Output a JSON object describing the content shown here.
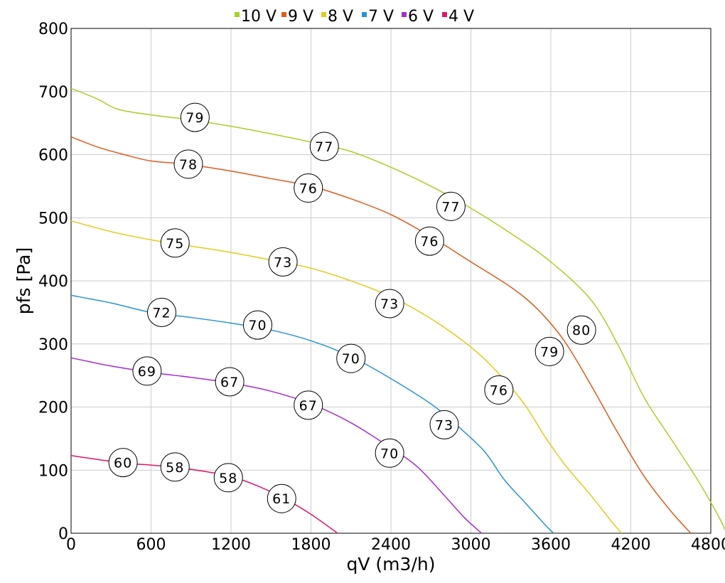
{
  "chart_data": {
    "type": "line",
    "xlabel": "qV (m3/h)",
    "ylabel": "pfs [Pa]",
    "xlim": [
      0,
      4800
    ],
    "ylim": [
      0,
      800
    ],
    "x_ticks": [
      0,
      600,
      1200,
      1800,
      2400,
      3000,
      3600,
      4200,
      4800
    ],
    "y_ticks": [
      0,
      100,
      200,
      300,
      400,
      500,
      600,
      700,
      800
    ],
    "grid": true,
    "legend_position": "top",
    "series": [
      {
        "name": "10 V",
        "color": "#a8d126",
        "points": [
          [
            0,
            705
          ],
          [
            200,
            688
          ],
          [
            350,
            672
          ],
          [
            600,
            663
          ],
          [
            900,
            655
          ],
          [
            1200,
            645
          ],
          [
            1500,
            633
          ],
          [
            1800,
            620
          ],
          [
            2100,
            605
          ],
          [
            2400,
            580
          ],
          [
            2700,
            550
          ],
          [
            3000,
            515
          ],
          [
            3300,
            475
          ],
          [
            3600,
            430
          ],
          [
            3900,
            370
          ],
          [
            4100,
            300
          ],
          [
            4300,
            215
          ],
          [
            4500,
            150
          ],
          [
            4700,
            85
          ],
          [
            4850,
            30
          ],
          [
            4920,
            0
          ]
        ],
        "annotations": [
          [
            930,
            659,
            "79"
          ],
          [
            1900,
            613,
            "77"
          ],
          [
            2850,
            518,
            "77"
          ],
          [
            3830,
            322,
            "80"
          ]
        ]
      },
      {
        "name": "9 V",
        "color": "#e05a1b",
        "points": [
          [
            0,
            628
          ],
          [
            200,
            612
          ],
          [
            400,
            600
          ],
          [
            600,
            590
          ],
          [
            850,
            585
          ],
          [
            1200,
            574
          ],
          [
            1500,
            562
          ],
          [
            1800,
            550
          ],
          [
            2100,
            530
          ],
          [
            2400,
            505
          ],
          [
            2700,
            470
          ],
          [
            3000,
            430
          ],
          [
            3300,
            390
          ],
          [
            3500,
            355
          ],
          [
            3700,
            305
          ],
          [
            3900,
            235
          ],
          [
            4100,
            160
          ],
          [
            4300,
            90
          ],
          [
            4500,
            35
          ],
          [
            4650,
            0
          ]
        ],
        "annotations": [
          [
            880,
            585,
            "78"
          ],
          [
            1780,
            547,
            "76"
          ],
          [
            2690,
            463,
            "76"
          ],
          [
            3590,
            288,
            "79"
          ]
        ]
      },
      {
        "name": "8 V",
        "color": "#e0cc1a",
        "points": [
          [
            0,
            495
          ],
          [
            300,
            478
          ],
          [
            600,
            465
          ],
          [
            900,
            455
          ],
          [
            1200,
            445
          ],
          [
            1500,
            433
          ],
          [
            1800,
            420
          ],
          [
            2100,
            400
          ],
          [
            2400,
            375
          ],
          [
            2700,
            340
          ],
          [
            3000,
            295
          ],
          [
            3200,
            255
          ],
          [
            3400,
            205
          ],
          [
            3550,
            155
          ],
          [
            3700,
            110
          ],
          [
            3900,
            60
          ],
          [
            4050,
            20
          ],
          [
            4130,
            0
          ]
        ],
        "annotations": [
          [
            780,
            460,
            "75"
          ],
          [
            1590,
            430,
            "73"
          ],
          [
            2390,
            364,
            "73"
          ],
          [
            3210,
            227,
            "76"
          ]
        ]
      },
      {
        "name": "7 V",
        "color": "#2694d6",
        "points": [
          [
            0,
            377
          ],
          [
            300,
            365
          ],
          [
            600,
            350
          ],
          [
            900,
            342
          ],
          [
            1200,
            333
          ],
          [
            1500,
            322
          ],
          [
            1800,
            305
          ],
          [
            2100,
            280
          ],
          [
            2400,
            245
          ],
          [
            2700,
            205
          ],
          [
            2900,
            170
          ],
          [
            3100,
            130
          ],
          [
            3250,
            85
          ],
          [
            3400,
            50
          ],
          [
            3550,
            15
          ],
          [
            3620,
            0
          ]
        ],
        "annotations": [
          [
            680,
            350,
            "72"
          ],
          [
            1400,
            330,
            "70"
          ],
          [
            2100,
            277,
            "70"
          ],
          [
            2800,
            172,
            "73"
          ]
        ]
      },
      {
        "name": "6 V",
        "color": "#a52bd6",
        "points": [
          [
            0,
            278
          ],
          [
            300,
            265
          ],
          [
            600,
            255
          ],
          [
            900,
            247
          ],
          [
            1200,
            238
          ],
          [
            1500,
            225
          ],
          [
            1800,
            205
          ],
          [
            2100,
            175
          ],
          [
            2400,
            135
          ],
          [
            2600,
            105
          ],
          [
            2800,
            60
          ],
          [
            2950,
            25
          ],
          [
            3080,
            0
          ]
        ],
        "annotations": [
          [
            570,
            257,
            "69"
          ],
          [
            1190,
            240,
            "67"
          ],
          [
            1780,
            203,
            "67"
          ],
          [
            2390,
            127,
            "70"
          ]
        ]
      },
      {
        "name": "4 V",
        "color": "#e0166a",
        "points": [
          [
            0,
            123
          ],
          [
            200,
            117
          ],
          [
            400,
            111
          ],
          [
            600,
            108
          ],
          [
            800,
            104
          ],
          [
            1000,
            98
          ],
          [
            1200,
            90
          ],
          [
            1400,
            75
          ],
          [
            1600,
            55
          ],
          [
            1800,
            30
          ],
          [
            2000,
            0
          ]
        ],
        "annotations": [
          [
            390,
            112,
            "60"
          ],
          [
            780,
            105,
            "58"
          ],
          [
            1180,
            88,
            "58"
          ],
          [
            1580,
            55,
            "61"
          ]
        ]
      }
    ]
  }
}
